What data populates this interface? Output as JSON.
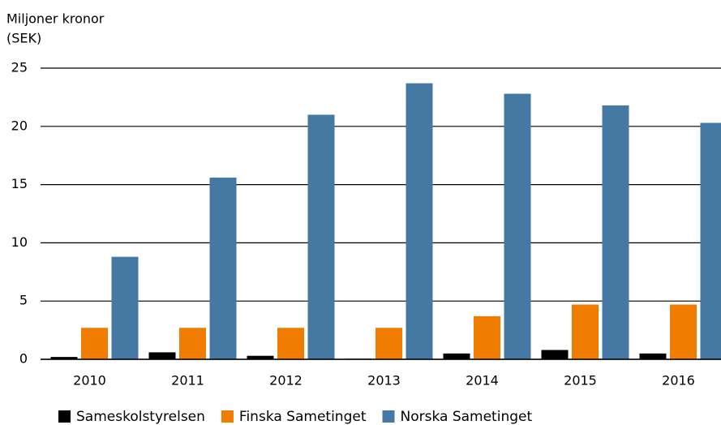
{
  "chart_data": {
    "type": "bar",
    "ylabel": [
      "Miljoner kronor",
      "(SEK)"
    ],
    "categories": [
      "2010",
      "2011",
      "2012",
      "2013",
      "2014",
      "2015",
      "2016"
    ],
    "series": [
      {
        "name": "Sameskolstyrelsen",
        "color": "#000000",
        "values": [
          0.2,
          0.6,
          0.3,
          0.05,
          0.5,
          0.8,
          0.5
        ]
      },
      {
        "name": "Finska Sametinget",
        "color": "#f07c00",
        "values": [
          2.7,
          2.7,
          2.7,
          2.7,
          3.7,
          4.7,
          4.7
        ]
      },
      {
        "name": "Norska Sametinget",
        "color": "#4579a3",
        "values": [
          8.8,
          15.6,
          21.0,
          23.7,
          22.8,
          21.8,
          20.3
        ]
      }
    ],
    "ylim": [
      0,
      25
    ],
    "yticks": [
      0,
      5,
      10,
      15,
      20,
      25
    ],
    "grid": true,
    "legend": "bottom"
  }
}
